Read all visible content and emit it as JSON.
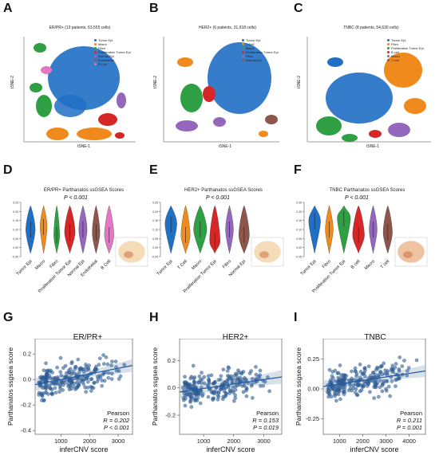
{
  "figure": {
    "panel_letters": [
      "A",
      "B",
      "C",
      "D",
      "E",
      "F",
      "G",
      "H",
      "I"
    ],
    "tsne": [
      {
        "letter": "A",
        "title": "ER/PR+ (13 patients, 63,555 cells)",
        "xlabel": "tSNE-1",
        "ylabel": "tSNE-2",
        "legend": [
          "Tumor Epi",
          "Macro",
          "Fibro",
          "Proliferation Tumor Epi",
          "Normal Epi",
          "Endothelial",
          "B Cell"
        ],
        "colors": [
          "#1f6fc5",
          "#f08a1c",
          "#2ea043",
          "#d62728",
          "#9467bd",
          "#8c564b",
          "#e377c2"
        ]
      },
      {
        "letter": "B",
        "title": "HER2+ (6 patients, 31,918 cells)",
        "xlabel": "tSNE-1",
        "ylabel": "tSNE-2",
        "legend": [
          "Tumor Epi",
          "T Cell",
          "Macro",
          "Proliferation Tumor Epi",
          "Fibro",
          "Normal Epi"
        ],
        "colors": [
          "#1f6fc5",
          "#f08a1c",
          "#2ea043",
          "#d62728",
          "#9467bd",
          "#8c564b"
        ]
      },
      {
        "letter": "C",
        "title": "TNBC (8 patients, 54,630 cells)",
        "xlabel": "tSNE-1",
        "ylabel": "tSNE-2",
        "legend": [
          "Tumor Epi",
          "Fibro",
          "Proliferation Tumor Epi",
          "B cell",
          "Macro",
          "T cell"
        ],
        "colors": [
          "#1f6fc5",
          "#f08a1c",
          "#2ea043",
          "#d62728",
          "#9467bd",
          "#8c564b"
        ]
      }
    ],
    "violins": [
      {
        "letter": "D",
        "title": "ER/PR+ Parthanatos ssGSEA Scores",
        "pvalue": "P < 0.001",
        "categories": [
          "Tumor Epi",
          "Macro",
          "Fibro",
          "Proliferation Tumor Epi",
          "Normal Epi",
          "Endothelial",
          "B Cell"
        ],
        "colors": [
          "#1f6fc5",
          "#f08a1c",
          "#2ea043",
          "#d62728",
          "#9467bd",
          "#8c564b",
          "#e377c2"
        ],
        "yticks": [
          "0.25",
          "0.20",
          "0.15",
          "0.10",
          "0.05",
          "0.00",
          "-0.05"
        ]
      },
      {
        "letter": "E",
        "title": "HER2+ Parthanatos ssGSEA Scores",
        "pvalue": "P < 0.001",
        "categories": [
          "Tumor Epi",
          "T Cell",
          "Macro",
          "Proliferation Tumor Epi",
          "Fibro",
          "Normal Epi"
        ],
        "colors": [
          "#1f6fc5",
          "#f08a1c",
          "#2ea043",
          "#d62728",
          "#9467bd",
          "#8c564b"
        ],
        "yticks": [
          "0.25",
          "0.20",
          "0.15",
          "0.10",
          "0.05",
          "0.00",
          "-0.05"
        ]
      },
      {
        "letter": "F",
        "title": "TNBC Parthanatos ssGSEA Scores",
        "pvalue": "P < 0.001",
        "categories": [
          "Tumor Epi",
          "Fibro",
          "Proliferation Tumor Epi",
          "B cell",
          "Macro",
          "T cell"
        ],
        "colors": [
          "#1f6fc5",
          "#f08a1c",
          "#2ea043",
          "#d62728",
          "#9467bd",
          "#8c564b"
        ],
        "yticks": [
          "0.25",
          "0.20",
          "0.15",
          "0.10",
          "0.05",
          "0.00",
          "-0.05"
        ]
      }
    ],
    "scatters": [
      {
        "letter": "G",
        "title": "ER/PR+",
        "xlabel": "inferCNV score",
        "ylabel": "Parthanatos ssgsea score",
        "xticks": [
          "1000",
          "2000",
          "3000"
        ],
        "yticks": [
          "0.2",
          "0.0",
          "-0.2",
          "-0.4"
        ],
        "stats": [
          "Pearson",
          "R = 0.202",
          "P < 0.001"
        ]
      },
      {
        "letter": "H",
        "title": "HER2+",
        "xlabel": "inferCNV score",
        "ylabel": "Parthanatos ssgsea score",
        "xticks": [
          "1000",
          "2000",
          "3000"
        ],
        "yticks": [
          "0.2",
          "0.0",
          "-0.2"
        ],
        "stats": [
          "Pearson",
          "R = 0.153",
          "P = 0.019"
        ]
      },
      {
        "letter": "I",
        "title": "TNBC",
        "xlabel": "inferCNV score",
        "ylabel": "Parthanatos ssgsea score",
        "xticks": [
          "1000",
          "2000",
          "3000",
          "4000"
        ],
        "yticks": [
          "0.25",
          "0.00",
          "-0.25"
        ],
        "stats": [
          "Pearson",
          "R = 0.211",
          "P = 0.001"
        ]
      }
    ]
  },
  "chart_data": [
    {
      "type": "scatter",
      "title": "ER/PR+",
      "xlabel": "inferCNV score",
      "ylabel": "Parthanatos ssgsea score",
      "xlim": [
        100,
        3500
      ],
      "ylim": [
        -0.43,
        0.32
      ],
      "trend": {
        "x": [
          100,
          3500
        ],
        "y": [
          -0.04,
          0.11
        ]
      },
      "pearson_r": 0.202,
      "p": "< 0.001"
    },
    {
      "type": "scatter",
      "title": "HER2+",
      "xlabel": "inferCNV score",
      "ylabel": "Parthanatos ssgsea score",
      "xlim": [
        200,
        3600
      ],
      "ylim": [
        -0.34,
        0.36
      ],
      "trend": {
        "x": [
          200,
          3600
        ],
        "y": [
          -0.03,
          0.08
        ]
      },
      "pearson_r": 0.153,
      "p": "= 0.019"
    },
    {
      "type": "scatter",
      "title": "TNBC",
      "xlabel": "inferCNV score",
      "ylabel": "Parthanatos ssgsea score",
      "xlim": [
        300,
        4700
      ],
      "ylim": [
        -0.38,
        0.42
      ],
      "trend": {
        "x": [
          300,
          4700
        ],
        "y": [
          0.02,
          0.15
        ]
      },
      "pearson_r": 0.211,
      "p": "= 0.001"
    }
  ]
}
